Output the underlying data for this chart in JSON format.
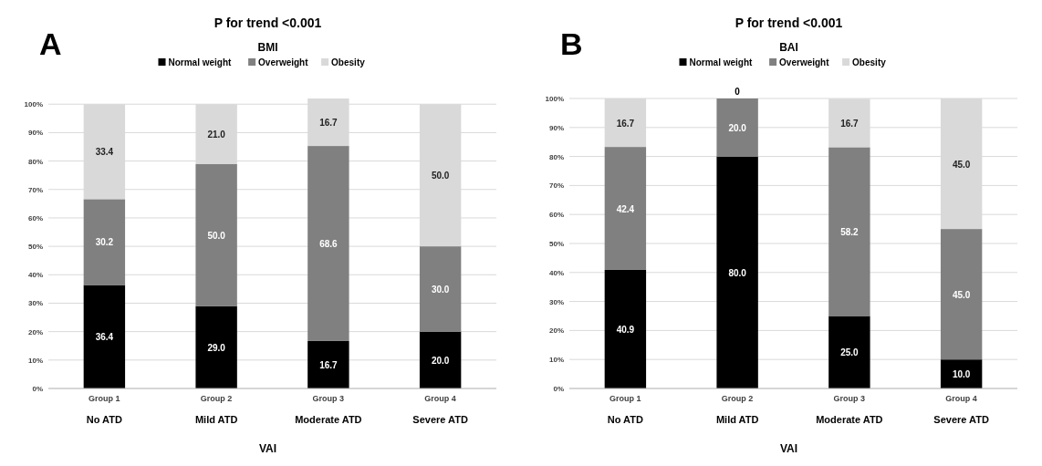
{
  "chart_data": [
    {
      "type": "bar",
      "stacked": true,
      "title": "P for trend <0.001",
      "subtitle": "BMI",
      "xlabel": "VAI",
      "annotations": [
        "A",
        "No ATD",
        "Mild ATD",
        "Moderate ATD",
        "Severe ATD"
      ],
      "categories": [
        "Group 1",
        "Group 2",
        "Group 3",
        "Group 4"
      ],
      "legend": "top",
      "grid": "y",
      "ylim": [
        0,
        102
      ],
      "yticks": [
        {
          "value": 0,
          "label": "0%"
        },
        {
          "value": 10,
          "label": "10%"
        },
        {
          "value": 20,
          "label": "20%"
        },
        {
          "value": 30,
          "label": "30%"
        },
        {
          "value": 40,
          "label": "40%"
        },
        {
          "value": 50,
          "label": "50%"
        },
        {
          "value": 60,
          "label": "60%"
        },
        {
          "value": 70,
          "label": "70%"
        },
        {
          "value": 80,
          "label": "80%"
        },
        {
          "value": 90,
          "label": "90%"
        },
        {
          "value": 100,
          "label": "100%"
        }
      ],
      "series": [
        {
          "name": "Normal weight",
          "color": "#000000",
          "values": [
            36.4,
            29.0,
            16.7,
            20.0
          ],
          "value_labels": [
            "36.4",
            "29.0",
            "16.7",
            "20.0"
          ]
        },
        {
          "name": "Overweight",
          "color": "#808080",
          "values": [
            30.2,
            50.0,
            68.6,
            30.0
          ],
          "value_labels": [
            "30.2",
            "50.0",
            "68.6",
            "30.0"
          ]
        },
        {
          "name": "Obesity",
          "color": "#d9d9d9",
          "values": [
            33.4,
            21.0,
            16.7,
            50.0
          ],
          "value_labels": [
            "33.4",
            "21.0",
            "16.7",
            "50.0"
          ]
        }
      ]
    },
    {
      "type": "bar",
      "stacked": true,
      "title": "P for trend <0.001",
      "subtitle": "BAI",
      "xlabel": "VAI",
      "annotations": [
        "B",
        "No ATD",
        "Mild ATD",
        "Moderate ATD",
        "Severe ATD"
      ],
      "categories": [
        "Group 1",
        "Group 2",
        "Group 3",
        "Group 4"
      ],
      "legend": "top",
      "grid": "y",
      "ylim": [
        0,
        100
      ],
      "yticks": [
        {
          "value": 0,
          "label": "0%"
        },
        {
          "value": 10,
          "label": "10%"
        },
        {
          "value": 20,
          "label": "20%"
        },
        {
          "value": 30,
          "label": "30%"
        },
        {
          "value": 40,
          "label": "40%"
        },
        {
          "value": 50,
          "label": "50%"
        },
        {
          "value": 60,
          "label": "60%"
        },
        {
          "value": 70,
          "label": "70%"
        },
        {
          "value": 80,
          "label": "80%"
        },
        {
          "value": 90,
          "label": "90%"
        },
        {
          "value": 100,
          "label": "100%"
        }
      ],
      "series": [
        {
          "name": "Normal weight",
          "color": "#000000",
          "values": [
            40.9,
            80.0,
            25.0,
            10.0
          ],
          "value_labels": [
            "40.9",
            "80.0",
            "25.0",
            "10.0"
          ]
        },
        {
          "name": "Overweight",
          "color": "#808080",
          "values": [
            42.4,
            20.0,
            58.2,
            45.0
          ],
          "value_labels": [
            "42.4",
            "20.0",
            "58.2",
            "45.0"
          ]
        },
        {
          "name": "Obesity",
          "color": "#d9d9d9",
          "values": [
            16.7,
            0,
            16.7,
            45.0
          ],
          "value_labels": [
            "16.7",
            "0",
            "16.7",
            "45.0"
          ]
        }
      ]
    }
  ]
}
